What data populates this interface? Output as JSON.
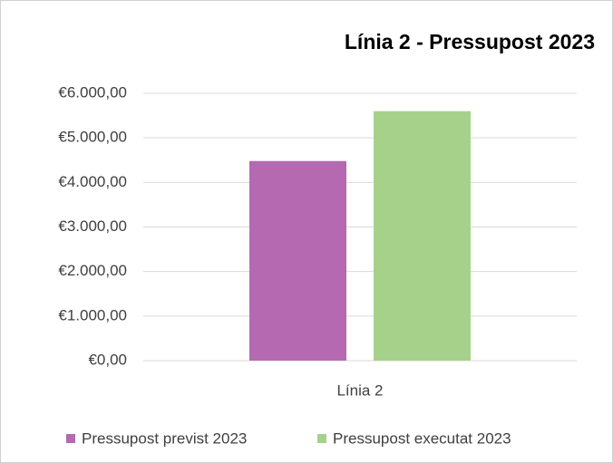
{
  "chart_data": {
    "type": "bar",
    "title": "Línia 2 - Pressupost 2023",
    "categories": [
      "Línia 2"
    ],
    "series": [
      {
        "name": "Pressupost previst 2023",
        "color": "#b469b0",
        "values": [
          4480
        ]
      },
      {
        "name": "Pressupost executat 2023",
        "color": "#a6d18b",
        "values": [
          5600
        ]
      }
    ],
    "ylim": [
      0,
      6000
    ],
    "yticks": [
      {
        "value": 0,
        "label": "€0,00"
      },
      {
        "value": 1000,
        "label": "€1.000,00"
      },
      {
        "value": 2000,
        "label": "€2.000,00"
      },
      {
        "value": 3000,
        "label": "€3.000,00"
      },
      {
        "value": 4000,
        "label": "€4.000,00"
      },
      {
        "value": 5000,
        "label": "€5.000,00"
      },
      {
        "value": 6000,
        "label": "€6.000,00"
      }
    ],
    "grid": true,
    "legend": "bottom"
  }
}
